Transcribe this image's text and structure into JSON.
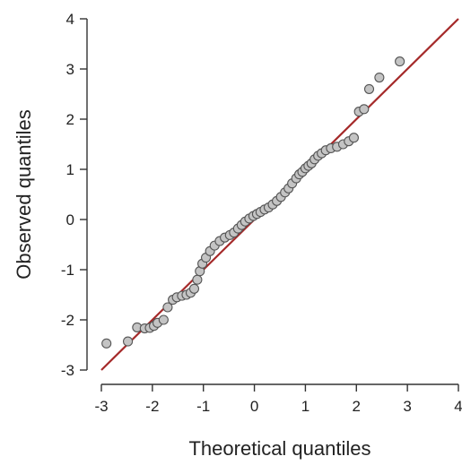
{
  "chart_data": {
    "type": "scatter",
    "title": "",
    "xlabel": "Theoretical quantiles",
    "ylabel": "Observed quantiles",
    "xlim": [
      -3,
      4
    ],
    "ylim": [
      -3,
      4
    ],
    "xticks": [
      "-3",
      "-2",
      "-1",
      "0",
      "1",
      "2",
      "3",
      "4"
    ],
    "yticks": [
      "-3",
      "-2",
      "-1",
      "0",
      "1",
      "2",
      "3",
      "4"
    ],
    "grid": false,
    "legend": "none",
    "colors": {
      "points": "#c4c4c4",
      "point_edge": "#555555",
      "reference_line": "#a52a2a",
      "axis": "#333333"
    },
    "reference_line": {
      "x": [
        -3,
        4
      ],
      "y": [
        -3,
        4
      ]
    },
    "points": [
      [
        -2.9,
        -2.47
      ],
      [
        -2.48,
        -2.43
      ],
      [
        -2.3,
        -2.15
      ],
      [
        -2.15,
        -2.17
      ],
      [
        -2.05,
        -2.16
      ],
      [
        -1.97,
        -2.12
      ],
      [
        -1.9,
        -2.06
      ],
      [
        -1.78,
        -2.0
      ],
      [
        -1.7,
        -1.75
      ],
      [
        -1.6,
        -1.6
      ],
      [
        -1.52,
        -1.55
      ],
      [
        -1.42,
        -1.52
      ],
      [
        -1.33,
        -1.5
      ],
      [
        -1.25,
        -1.46
      ],
      [
        -1.18,
        -1.38
      ],
      [
        -1.12,
        -1.2
      ],
      [
        -1.07,
        -1.03
      ],
      [
        -1.02,
        -0.88
      ],
      [
        -0.95,
        -0.76
      ],
      [
        -0.87,
        -0.63
      ],
      [
        -0.78,
        -0.52
      ],
      [
        -0.68,
        -0.43
      ],
      [
        -0.58,
        -0.36
      ],
      [
        -0.48,
        -0.31
      ],
      [
        -0.4,
        -0.26
      ],
      [
        -0.32,
        -0.18
      ],
      [
        -0.25,
        -0.11
      ],
      [
        -0.18,
        -0.04
      ],
      [
        -0.1,
        0.02
      ],
      [
        -0.02,
        0.07
      ],
      [
        0.05,
        0.11
      ],
      [
        0.12,
        0.15
      ],
      [
        0.2,
        0.2
      ],
      [
        0.28,
        0.24
      ],
      [
        0.36,
        0.3
      ],
      [
        0.44,
        0.37
      ],
      [
        0.52,
        0.45
      ],
      [
        0.6,
        0.54
      ],
      [
        0.67,
        0.62
      ],
      [
        0.74,
        0.72
      ],
      [
        0.82,
        0.82
      ],
      [
        0.88,
        0.9
      ],
      [
        0.94,
        0.95
      ],
      [
        1.0,
        1.02
      ],
      [
        1.06,
        1.07
      ],
      [
        1.12,
        1.12
      ],
      [
        1.18,
        1.2
      ],
      [
        1.25,
        1.27
      ],
      [
        1.32,
        1.32
      ],
      [
        1.4,
        1.38
      ],
      [
        1.5,
        1.42
      ],
      [
        1.62,
        1.45
      ],
      [
        1.74,
        1.5
      ],
      [
        1.85,
        1.56
      ],
      [
        1.95,
        1.63
      ],
      [
        2.05,
        2.15
      ],
      [
        2.15,
        2.2
      ],
      [
        2.25,
        2.6
      ],
      [
        2.45,
        2.83
      ],
      [
        2.85,
        3.15
      ]
    ]
  }
}
